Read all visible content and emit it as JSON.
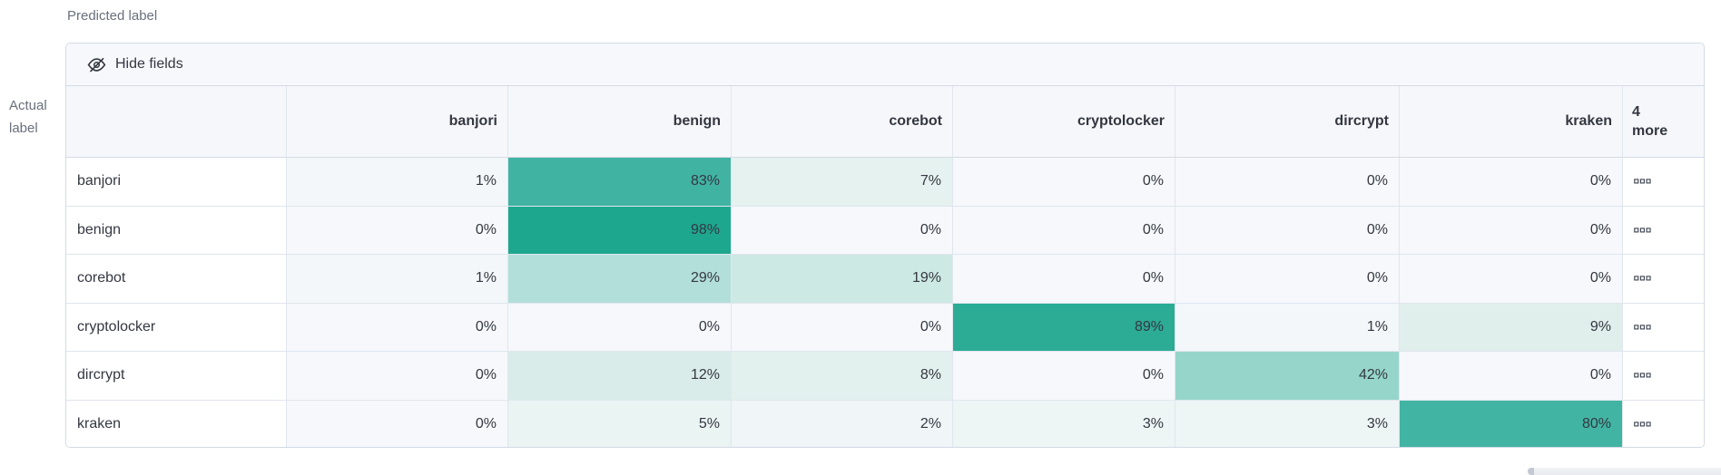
{
  "axes": {
    "predicted": "Predicted label",
    "actual_line1": "Actual",
    "actual_line2": "label"
  },
  "toolbar": {
    "hide_fields_label": "Hide fields"
  },
  "matrix": {
    "type": "heatmap",
    "columns": [
      "banjori",
      "benign",
      "corebot",
      "cryptolocker",
      "dircrypt",
      "kraken"
    ],
    "more_column": {
      "line1": "4",
      "line2": "more",
      "icon": "boxes-horizontal-icon"
    },
    "rows": [
      {
        "label": "banjori",
        "cells": [
          {
            "text": "1%",
            "bg": "#f3f7f9"
          },
          {
            "text": "83%",
            "bg": "#41b3a3"
          },
          {
            "text": "7%",
            "bg": "#e5f2f0"
          },
          {
            "text": "0%",
            "bg": "#f6f8fb"
          },
          {
            "text": "0%",
            "bg": "#f6f8fb"
          },
          {
            "text": "0%",
            "bg": "#f6f8fb"
          }
        ]
      },
      {
        "label": "benign",
        "cells": [
          {
            "text": "0%",
            "bg": "#f6f8fb"
          },
          {
            "text": "98%",
            "bg": "#1ea78f"
          },
          {
            "text": "0%",
            "bg": "#f6f8fb"
          },
          {
            "text": "0%",
            "bg": "#f6f8fb"
          },
          {
            "text": "0%",
            "bg": "#f6f8fb"
          },
          {
            "text": "0%",
            "bg": "#f6f8fb"
          }
        ]
      },
      {
        "label": "corebot",
        "cells": [
          {
            "text": "1%",
            "bg": "#f3f7f9"
          },
          {
            "text": "29%",
            "bg": "#b2dfd9"
          },
          {
            "text": "19%",
            "bg": "#cde9e4"
          },
          {
            "text": "0%",
            "bg": "#f6f8fb"
          },
          {
            "text": "0%",
            "bg": "#f6f8fb"
          },
          {
            "text": "0%",
            "bg": "#f6f8fb"
          }
        ]
      },
      {
        "label": "cryptolocker",
        "cells": [
          {
            "text": "0%",
            "bg": "#f6f8fb"
          },
          {
            "text": "0%",
            "bg": "#f6f8fb"
          },
          {
            "text": "0%",
            "bg": "#f6f8fb"
          },
          {
            "text": "89%",
            "bg": "#2cab95"
          },
          {
            "text": "1%",
            "bg": "#f3f7f9"
          },
          {
            "text": "9%",
            "bg": "#e0efec"
          }
        ]
      },
      {
        "label": "dircrypt",
        "cells": [
          {
            "text": "0%",
            "bg": "#f6f8fb"
          },
          {
            "text": "12%",
            "bg": "#daece9"
          },
          {
            "text": "8%",
            "bg": "#e3f1ee"
          },
          {
            "text": "0%",
            "bg": "#f6f8fb"
          },
          {
            "text": "42%",
            "bg": "#96d5ca"
          },
          {
            "text": "0%",
            "bg": "#f6f8fb"
          }
        ]
      },
      {
        "label": "kraken",
        "cells": [
          {
            "text": "0%",
            "bg": "#f6f8fb"
          },
          {
            "text": "5%",
            "bg": "#eaf4f2"
          },
          {
            "text": "2%",
            "bg": "#f0f6f7"
          },
          {
            "text": "3%",
            "bg": "#eef5f5"
          },
          {
            "text": "3%",
            "bg": "#eef5f5"
          },
          {
            "text": "80%",
            "bg": "#42b4a3"
          }
        ]
      }
    ]
  },
  "colors": {
    "heat_max": "#1ea78f",
    "heat_min": "#f6f8fb",
    "text_dark": "#343741",
    "text_gray": "#69707d",
    "border": "#d3dae6"
  }
}
